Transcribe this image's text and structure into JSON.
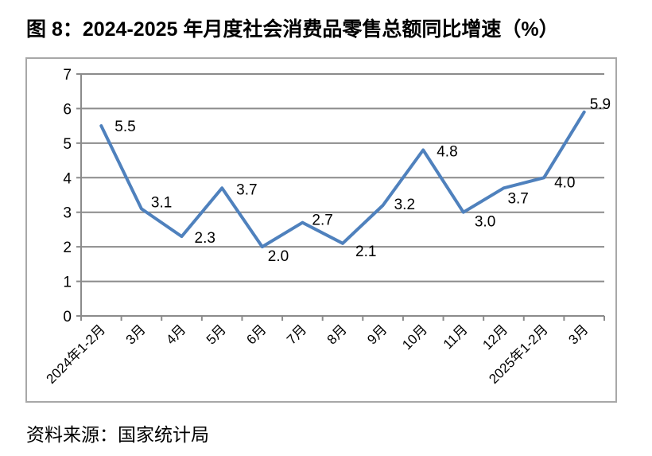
{
  "title": "图 8：2024-2025 年月度社会消费品零售总额同比增速（%）",
  "source": "资料来源：国家统计局",
  "chart_data": {
    "type": "line",
    "title": "图 8：2024-2025 年月度社会消费品零售总额同比增速（%）",
    "categories": [
      "2024年1-2月",
      "3月",
      "4月",
      "5月",
      "6月",
      "7月",
      "8月",
      "9月",
      "10月",
      "11月",
      "12月",
      "2025年1-2月",
      "3月"
    ],
    "values": [
      5.5,
      3.1,
      2.3,
      3.7,
      2.0,
      2.7,
      2.1,
      3.2,
      4.8,
      3.0,
      3.7,
      4.0,
      5.9
    ],
    "data_labels": [
      "5.5",
      "3.1",
      "2.3",
      "3.7",
      "2.0",
      "2.7",
      "2.1",
      "3.2",
      "4.8",
      "3.0",
      "3.7",
      "4.0",
      "5.9"
    ],
    "xlabel": "",
    "ylabel": "",
    "ylim": [
      0,
      7
    ],
    "yticks": [
      0,
      1,
      2,
      3,
      4,
      5,
      6,
      7
    ],
    "grid": true,
    "legend": "none",
    "colors": {
      "line": "#4F81BD",
      "grid": "#8B8B8B",
      "axis": "#8B8B8B",
      "frame_border": "#A8A8A8",
      "text": "#000000",
      "background": "#FFFFFF"
    }
  }
}
